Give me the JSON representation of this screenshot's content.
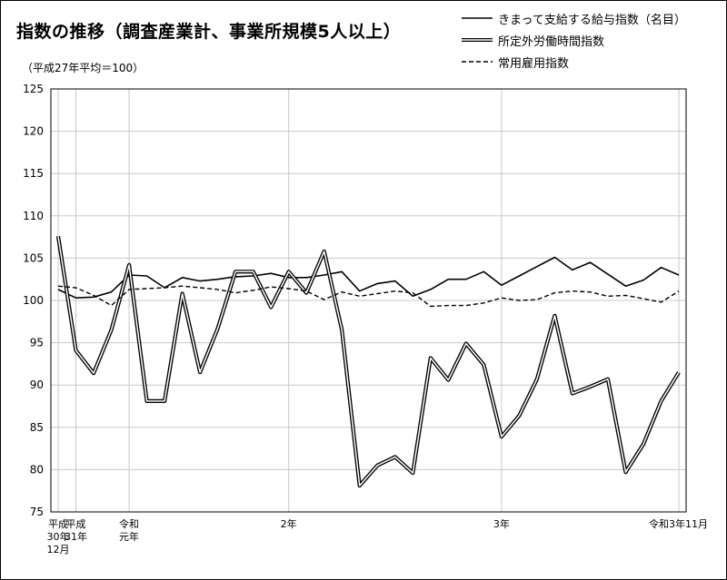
{
  "chart_data": {
    "type": "line",
    "title": "指数の推移（調査産業計、事業所規模5人以上）",
    "subtitle": "（平成27年平均＝100）",
    "ylim": [
      75,
      125
    ],
    "yticks": [
      75,
      80,
      85,
      90,
      95,
      100,
      105,
      110,
      115,
      120,
      125
    ],
    "grid": true,
    "legend_position": "top-right",
    "x_tick_labels": [
      {
        "index": 0,
        "lines": [
          "平成",
          "30年",
          "12月"
        ]
      },
      {
        "index": 1,
        "lines": [
          "平成",
          "31年"
        ]
      },
      {
        "index": 4,
        "lines": [
          "令和",
          "元年"
        ]
      },
      {
        "index": 13,
        "lines": [
          "2年"
        ]
      },
      {
        "index": 25,
        "lines": [
          "3年"
        ]
      },
      {
        "index": 35,
        "lines": [
          "令和3年11月"
        ]
      }
    ],
    "x_count": 36,
    "series": [
      {
        "name": "きまって支給する給与指数（名目）",
        "style": "solid",
        "values": [
          101.3,
          100.3,
          100.4,
          101.0,
          103.0,
          102.9,
          101.5,
          102.7,
          102.3,
          102.5,
          102.8,
          102.9,
          103.2,
          102.7,
          102.7,
          103.0,
          103.4,
          101.1,
          102.0,
          102.3,
          100.5,
          101.3,
          102.5,
          102.5,
          103.4,
          101.8,
          102.9,
          104.0,
          105.1,
          103.6,
          104.5,
          103.1,
          101.7,
          102.4,
          103.9,
          103.0
        ]
      },
      {
        "name": "所定外労働時間指数",
        "style": "double",
        "values": [
          107.6,
          94.1,
          91.4,
          96.5,
          104.2,
          88.1,
          88.1,
          100.8,
          91.5,
          96.7,
          103.4,
          103.4,
          99.2,
          103.4,
          100.9,
          105.8,
          96.5,
          78.1,
          80.5,
          81.5,
          79.6,
          93.2,
          90.6,
          94.9,
          92.4,
          83.9,
          86.4,
          90.7,
          98.2,
          89.0,
          89.8,
          90.7,
          79.7,
          83.0,
          88.1,
          91.5
        ]
      },
      {
        "name": "常用雇用指数",
        "style": "dashed",
        "values": [
          101.7,
          101.5,
          100.6,
          99.4,
          101.3,
          101.4,
          101.5,
          101.7,
          101.5,
          101.3,
          100.9,
          101.2,
          101.6,
          101.4,
          101.1,
          100.1,
          101.0,
          100.5,
          100.8,
          101.1,
          100.9,
          99.3,
          99.4,
          99.4,
          99.7,
          100.3,
          100.0,
          100.1,
          100.9,
          101.1,
          101.0,
          100.5,
          100.6,
          100.2,
          99.8,
          101.1
        ]
      }
    ]
  }
}
